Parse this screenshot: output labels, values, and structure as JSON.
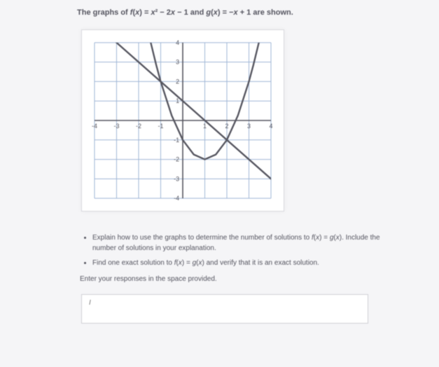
{
  "prompt_html": "The graphs of <span class='sub'>f</span>(<span class='sub'>x</span>) = <span class='sub'>x</span>² − 2<span class='sub'>x</span> − 1 and <span class='sub'>g</span>(<span class='sub'>x</span>) = −<span class='sub'>x</span> + 1 are shown.",
  "bullets": [
    "Explain how to use the graphs to determine the number of solutions to <span class='sub'>f</span>(<span class='sub'>x</span>) = <span class='sub'>g</span>(<span class='sub'>x</span>). Include the number of solutions in your explanation.",
    "Find one exact solution to <span class='sub'>f</span>(<span class='sub'>x</span>) = <span class='sub'>g</span>(<span class='sub'>x</span>) and verify that it is an exact solution."
  ],
  "enter_line": "Enter your responses in the space provided.",
  "answer_placeholder": "I",
  "chart": {
    "type": "line",
    "xlim": [
      -4,
      4
    ],
    "ylim": [
      -4,
      4
    ],
    "xtick_step": 1,
    "ytick_step": 1,
    "x_labels": [
      -4,
      -3,
      -2,
      -1,
      1,
      2,
      3,
      4
    ],
    "y_labels": [
      -4,
      -3,
      -2,
      -1,
      1,
      2,
      3,
      4
    ],
    "background": "#ffffff",
    "major_grid_color": "#9fb6d6",
    "major_grid_width": 1.0,
    "minor_grid_color": "#d6e0ee",
    "minor_grid_width": 0.5,
    "axis_color": "#565660",
    "axis_width": 1.6,
    "label_font_size": 9,
    "label_color": "#565660",
    "series": [
      {
        "name": "g(x) = -x + 1",
        "type": "line",
        "color": "#565660",
        "width": 2.4,
        "points": [
          [
            -4,
            5
          ],
          [
            5,
            -4
          ]
        ]
      },
      {
        "name": "f(x) = x^2 - 2x - 1",
        "type": "parabola",
        "color": "#565660",
        "width": 2.4,
        "samples": [
          [
            -1.45,
            4.0
          ],
          [
            -1.2,
            2.84
          ],
          [
            -1.0,
            2.0
          ],
          [
            -0.5,
            0.25
          ],
          [
            0,
            -1
          ],
          [
            0.5,
            -1.75
          ],
          [
            1,
            -2
          ],
          [
            1.5,
            -1.75
          ],
          [
            2,
            -1
          ],
          [
            2.5,
            0.25
          ],
          [
            3,
            2
          ],
          [
            3.2,
            2.84
          ],
          [
            3.45,
            4.0
          ]
        ]
      }
    ]
  }
}
